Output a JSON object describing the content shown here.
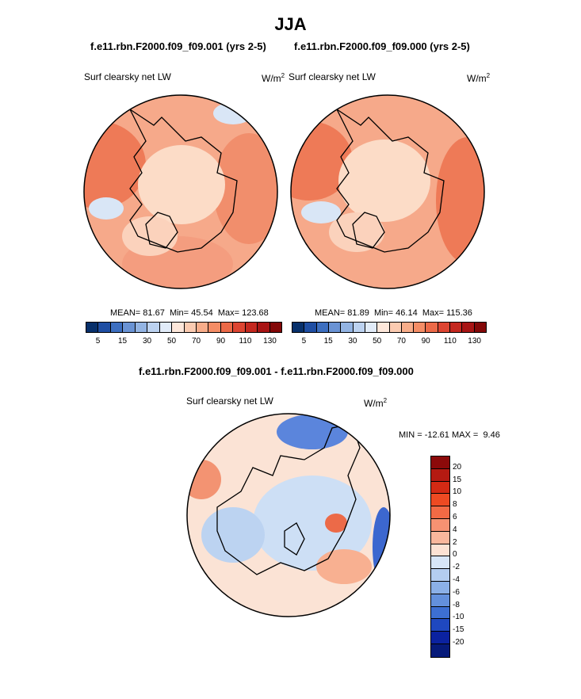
{
  "title": "JJA",
  "panels": [
    {
      "title": "f.e11.rbn.F2000.f09_f09.001 (yrs 2-5)",
      "variable": "Surf clearsky net LW",
      "units_base": "W/m",
      "units_exp": "2",
      "mean_label": "MEAN=",
      "mean": "81.67",
      "min_label": "Min=",
      "min": "45.54",
      "max_label": "Max=",
      "max": "123.68"
    },
    {
      "title": "f.e11.rbn.F2000.f09_f09.000 (yrs 2-5)",
      "variable": "Surf clearsky net LW",
      "units_base": "W/m",
      "units_exp": "2",
      "mean_label": "MEAN=",
      "mean": "81.89",
      "min_label": "Min=",
      "min": "46.14",
      "max_label": "Max=",
      "max": "115.36"
    }
  ],
  "diff": {
    "title": "f.e11.rbn.F2000.f09_f09.001 - f.e11.rbn.F2000.f09_f09.000",
    "variable": "Surf clearsky net LW",
    "units_base": "W/m",
    "units_exp": "2",
    "min_label": "MIN =",
    "min": "-12.61",
    "max_label": "MAX =",
    "max": "9.46"
  },
  "chart_data": [
    {
      "type": "heatmap",
      "projection": "north-polar-stereographic",
      "title": "f.e11.rbn.F2000.f09_f09.001 (yrs 2-5)",
      "variable": "Surf clearsky net LW",
      "units": "W/m2",
      "mean": 81.67,
      "min": 45.54,
      "max": 123.68
    },
    {
      "type": "heatmap",
      "projection": "north-polar-stereographic",
      "title": "f.e11.rbn.F2000.f09_f09.000 (yrs 2-5)",
      "variable": "Surf clearsky net LW",
      "units": "W/m2",
      "mean": 81.89,
      "min": 46.14,
      "max": 115.36
    },
    {
      "type": "heatmap",
      "projection": "north-polar-stereographic",
      "title": "f.e11.rbn.F2000.f09_f09.001 - f.e11.rbn.F2000.f09_f09.000",
      "variable": "Surf clearsky net LW",
      "units": "W/m2",
      "min": -12.61,
      "max": 9.46
    }
  ],
  "colorbar_abs": {
    "ticks": [
      "5",
      "15",
      "30",
      "50",
      "70",
      "90",
      "110",
      "130"
    ],
    "colors": [
      "#08306b",
      "#1f4ea3",
      "#3d6fc0",
      "#6a93d4",
      "#93b4e3",
      "#bcd2f0",
      "#e1ebf8",
      "#fde7da",
      "#fbcbb1",
      "#f8ad8a",
      "#f48d66",
      "#ec6a48",
      "#dd4532",
      "#c4281f",
      "#a81515",
      "#830808"
    ]
  },
  "colorbar_diff": {
    "labels": [
      "20",
      "15",
      "10",
      "8",
      "6",
      "4",
      "2",
      "0",
      "-2",
      "-4",
      "-6",
      "-8",
      "-10",
      "-15",
      "-20"
    ],
    "colors": [
      "#8c0a0a",
      "#b51a12",
      "#d42a14",
      "#ee4a22",
      "#f36a45",
      "#f79272",
      "#fab79c",
      "#fde2d3",
      "#d8e6f7",
      "#b4cdf0",
      "#8bb0e7",
      "#6390dc",
      "#3d6fd2",
      "#1f48c0",
      "#0b22a0",
      "#061a7a"
    ]
  }
}
